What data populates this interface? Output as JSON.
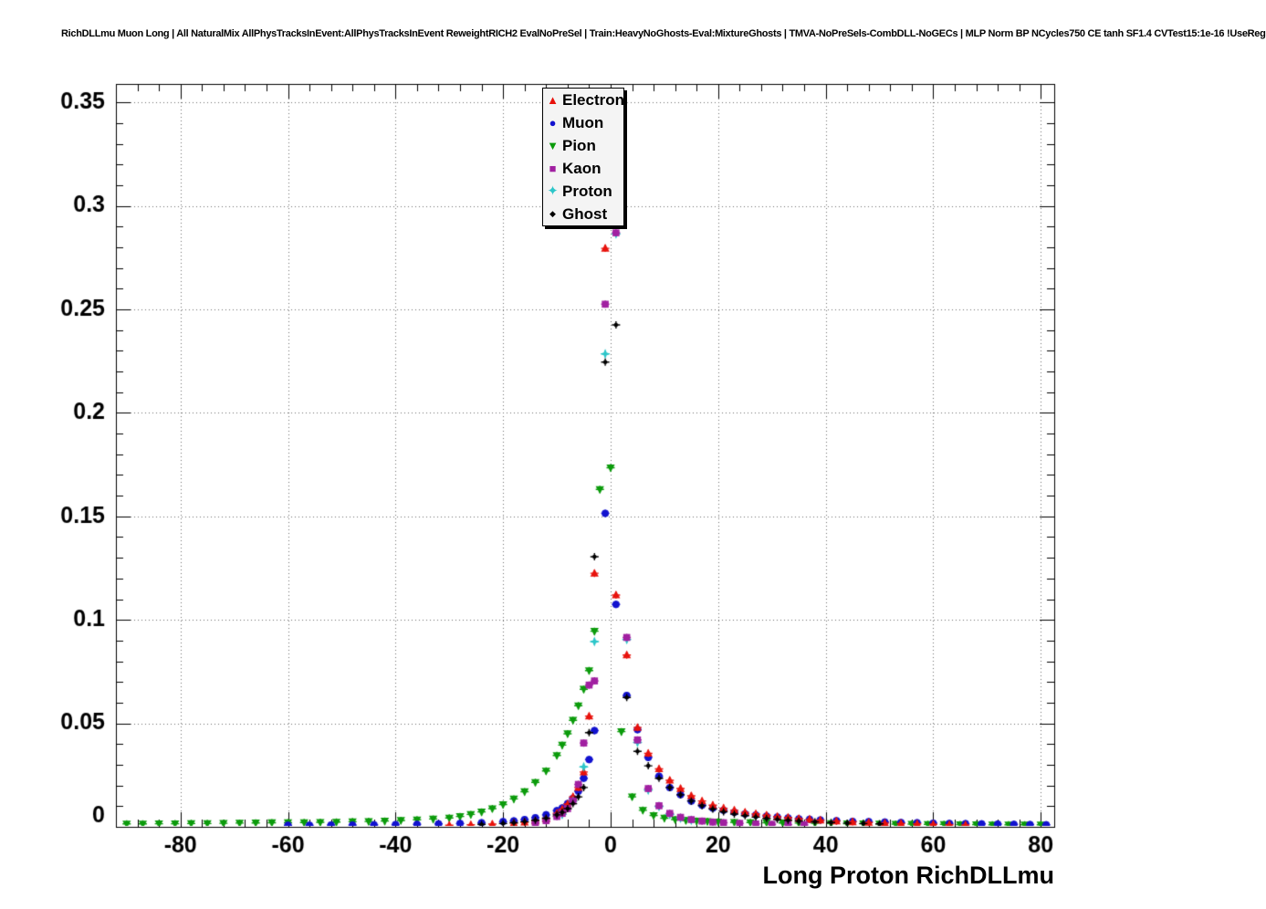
{
  "title": "RichDLLmu Muon Long | All NaturalMix AllPhysTracksInEvent:AllPhysTracksInEvent ReweightRICH2 EvalNoPreSel | Train:HeavyNoGhosts-Eval:MixtureGhosts | TMVA-NoPreSels-CombDLL-NoGECs | MLP Norm BP NCycles750 CE tanh SF1.4 CVTest15:1e-16 !UseReg",
  "chart_data": {
    "type": "scatter",
    "title": "RichDLLmu Muon Long",
    "xlabel": "Long Proton RichDLLmu",
    "ylabel": "",
    "xlim": [
      -92,
      82.5
    ],
    "ylim": [
      0,
      0.3589
    ],
    "xticks": [
      -80,
      -60,
      -40,
      -20,
      0,
      20,
      40,
      60,
      80
    ],
    "yticks": [
      0,
      0.05,
      0.1,
      0.15,
      0.2,
      0.25,
      0.3,
      0.35
    ],
    "ytick_labels": [
      "0",
      "0.05",
      "0.1",
      "0.15",
      "0.2",
      "0.25",
      "0.3",
      "0.35"
    ],
    "grid": true,
    "grid_style": "dotted",
    "legend_position": "top-center",
    "draw_order": [
      2,
      1,
      0,
      4,
      3,
      5
    ],
    "series": [
      {
        "name": "Electron",
        "color": "#e8120c",
        "marker": "triangle-up",
        "points": [
          [
            -30,
            0.0008
          ],
          [
            -26,
            0.001
          ],
          [
            -22,
            0.0013
          ],
          [
            -18,
            0.0018
          ],
          [
            -16,
            0.0022
          ],
          [
            -14,
            0.0028
          ],
          [
            -12,
            0.0038
          ],
          [
            -10,
            0.0065
          ],
          [
            -9,
            0.0085
          ],
          [
            -8,
            0.011
          ],
          [
            -7,
            0.0145
          ],
          [
            -6,
            0.019
          ],
          [
            -5,
            0.0265
          ],
          [
            -4,
            0.0535
          ],
          [
            -3,
            0.1225
          ],
          [
            -1,
            0.2795
          ],
          [
            1,
            0.112
          ],
          [
            3,
            0.083
          ],
          [
            5,
            0.048
          ],
          [
            7,
            0.0355
          ],
          [
            9,
            0.028
          ],
          [
            11,
            0.0225
          ],
          [
            13,
            0.0185
          ],
          [
            15,
            0.015
          ],
          [
            17,
            0.0125
          ],
          [
            19,
            0.0105
          ],
          [
            21,
            0.009
          ],
          [
            23,
            0.008
          ],
          [
            25,
            0.007
          ],
          [
            27,
            0.0063
          ],
          [
            29,
            0.0056
          ],
          [
            31,
            0.005
          ],
          [
            33,
            0.0045
          ],
          [
            35,
            0.004
          ],
          [
            37,
            0.0036
          ],
          [
            39,
            0.0032
          ],
          [
            42,
            0.0028
          ],
          [
            45,
            0.0024
          ],
          [
            48,
            0.0021
          ],
          [
            51,
            0.0018
          ],
          [
            54,
            0.0016
          ],
          [
            57,
            0.0014
          ],
          [
            60,
            0.0012
          ],
          [
            63,
            0.001
          ],
          [
            66,
            0.0009
          ]
        ]
      },
      {
        "name": "Muon",
        "color": "#1212cf",
        "marker": "circle",
        "points": [
          [
            -60,
            0.0008
          ],
          [
            -56,
            0.0008
          ],
          [
            -52,
            0.0009
          ],
          [
            -48,
            0.0009
          ],
          [
            -44,
            0.001
          ],
          [
            -40,
            0.0011
          ],
          [
            -36,
            0.0012
          ],
          [
            -32,
            0.0014
          ],
          [
            -28,
            0.0016
          ],
          [
            -24,
            0.002
          ],
          [
            -20,
            0.0025
          ],
          [
            -18,
            0.0029
          ],
          [
            -16,
            0.0035
          ],
          [
            -14,
            0.0044
          ],
          [
            -12,
            0.0058
          ],
          [
            -10,
            0.0078
          ],
          [
            -9,
            0.0092
          ],
          [
            -8,
            0.0112
          ],
          [
            -7,
            0.0138
          ],
          [
            -6,
            0.0172
          ],
          [
            -5,
            0.0235
          ],
          [
            -4,
            0.0325
          ],
          [
            -3,
            0.0465
          ],
          [
            -1,
            0.1515
          ],
          [
            1,
            0.1075
          ],
          [
            3,
            0.0635
          ],
          [
            5,
            0.047
          ],
          [
            7,
            0.0335
          ],
          [
            9,
            0.0245
          ],
          [
            11,
            0.019
          ],
          [
            13,
            0.0155
          ],
          [
            15,
            0.0125
          ],
          [
            17,
            0.0105
          ],
          [
            19,
            0.009
          ],
          [
            21,
            0.008
          ],
          [
            23,
            0.007
          ],
          [
            25,
            0.0063
          ],
          [
            27,
            0.0057
          ],
          [
            29,
            0.0052
          ],
          [
            31,
            0.0047
          ],
          [
            33,
            0.0043
          ],
          [
            35,
            0.0039
          ],
          [
            37,
            0.0036
          ],
          [
            39,
            0.0033
          ],
          [
            42,
            0.003
          ],
          [
            45,
            0.0027
          ],
          [
            48,
            0.0025
          ],
          [
            51,
            0.0023
          ],
          [
            54,
            0.0021
          ],
          [
            57,
            0.002
          ],
          [
            60,
            0.0018
          ],
          [
            63,
            0.0017
          ],
          [
            66,
            0.0015
          ],
          [
            69,
            0.0014
          ],
          [
            72,
            0.0013
          ],
          [
            75,
            0.0012
          ],
          [
            78,
            0.0011
          ],
          [
            81,
            0.001
          ]
        ]
      },
      {
        "name": "Pion",
        "color": "#0b9b0b",
        "marker": "triangle-down",
        "points": [
          [
            -90,
            0.0014
          ],
          [
            -87,
            0.0014
          ],
          [
            -84,
            0.0015
          ],
          [
            -81,
            0.0015
          ],
          [
            -78,
            0.0016
          ],
          [
            -75,
            0.0016
          ],
          [
            -72,
            0.0017
          ],
          [
            -69,
            0.0018
          ],
          [
            -66,
            0.0019
          ],
          [
            -63,
            0.002
          ],
          [
            -60,
            0.002
          ],
          [
            -57,
            0.0021
          ],
          [
            -54,
            0.0022
          ],
          [
            -51,
            0.0023
          ],
          [
            -48,
            0.0025
          ],
          [
            -45,
            0.0026
          ],
          [
            -42,
            0.0028
          ],
          [
            -39,
            0.0031
          ],
          [
            -36,
            0.0034
          ],
          [
            -33,
            0.0038
          ],
          [
            -30,
            0.0043
          ],
          [
            -28,
            0.005
          ],
          [
            -26,
            0.006
          ],
          [
            -24,
            0.0072
          ],
          [
            -22,
            0.0088
          ],
          [
            -20,
            0.0108
          ],
          [
            -18,
            0.0135
          ],
          [
            -16,
            0.017
          ],
          [
            -14,
            0.0215
          ],
          [
            -12,
            0.027
          ],
          [
            -10,
            0.0345
          ],
          [
            -9,
            0.0395
          ],
          [
            -8,
            0.045
          ],
          [
            -7,
            0.0515
          ],
          [
            -6,
            0.0585
          ],
          [
            -5,
            0.0665
          ],
          [
            -4,
            0.0755
          ],
          [
            -3,
            0.0945
          ],
          [
            -2,
            0.163
          ],
          [
            0,
            0.1735
          ],
          [
            2,
            0.046
          ],
          [
            4,
            0.0145
          ],
          [
            6,
            0.008
          ],
          [
            8,
            0.0055
          ],
          [
            10,
            0.0042
          ],
          [
            12,
            0.0035
          ],
          [
            14,
            0.0031
          ],
          [
            16,
            0.0028
          ],
          [
            18,
            0.0026
          ],
          [
            20,
            0.0024
          ],
          [
            23,
            0.0022
          ],
          [
            26,
            0.0021
          ],
          [
            29,
            0.002
          ],
          [
            32,
            0.0019
          ],
          [
            35,
            0.0018
          ],
          [
            38,
            0.0017
          ],
          [
            41,
            0.0016
          ],
          [
            44,
            0.0015
          ],
          [
            47,
            0.0015
          ],
          [
            50,
            0.0014
          ],
          [
            53,
            0.0013
          ],
          [
            56,
            0.0013
          ],
          [
            59,
            0.0012
          ],
          [
            62,
            0.0012
          ],
          [
            65,
            0.0011
          ],
          [
            68,
            0.0011
          ],
          [
            71,
            0.001
          ],
          [
            74,
            0.001
          ],
          [
            77,
            0.001
          ],
          [
            80,
            0.001
          ]
        ]
      },
      {
        "name": "Kaon",
        "color": "#a120a1",
        "marker": "square",
        "points": [
          [
            -14,
            0.002
          ],
          [
            -12,
            0.003
          ],
          [
            -10,
            0.005
          ],
          [
            -9,
            0.0065
          ],
          [
            -8,
            0.0088
          ],
          [
            -7,
            0.0125
          ],
          [
            -6,
            0.0205
          ],
          [
            -5,
            0.0405
          ],
          [
            -4,
            0.0685
          ],
          [
            -3,
            0.0705
          ],
          [
            -1,
            0.2525
          ],
          [
            1,
            0.287
          ],
          [
            3,
            0.0915
          ],
          [
            5,
            0.042
          ],
          [
            7,
            0.0185
          ],
          [
            9,
            0.0102
          ],
          [
            11,
            0.0065
          ],
          [
            13,
            0.0046
          ],
          [
            15,
            0.0035
          ],
          [
            17,
            0.0028
          ],
          [
            19,
            0.0023
          ],
          [
            21,
            0.002
          ],
          [
            24,
            0.0017
          ],
          [
            27,
            0.0014
          ],
          [
            30,
            0.0012
          ],
          [
            33,
            0.0011
          ],
          [
            36,
            0.001
          ]
        ]
      },
      {
        "name": "Proton",
        "color": "#2cc6c9",
        "marker": "star4",
        "points": [
          [
            -9,
            0.006
          ],
          [
            -7,
            0.0125
          ],
          [
            -5,
            0.029
          ],
          [
            -3,
            0.0895
          ],
          [
            -1,
            0.2285
          ],
          [
            1,
            0.2865
          ],
          [
            3,
            0.0905
          ],
          [
            5,
            0.0408
          ],
          [
            7,
            0.0178
          ],
          [
            9,
            0.0098
          ],
          [
            11,
            0.006
          ],
          [
            13,
            0.0042
          ],
          [
            15,
            0.0032
          ]
        ]
      },
      {
        "name": "Ghost",
        "color": "#000000",
        "marker": "dot",
        "points": [
          [
            -24,
            0.0012
          ],
          [
            -20,
            0.0016
          ],
          [
            -18,
            0.002
          ],
          [
            -16,
            0.0025
          ],
          [
            -14,
            0.0032
          ],
          [
            -12,
            0.0042
          ],
          [
            -10,
            0.0058
          ],
          [
            -9,
            0.007
          ],
          [
            -8,
            0.0088
          ],
          [
            -7,
            0.0112
          ],
          [
            -6,
            0.0145
          ],
          [
            -5,
            0.019
          ],
          [
            -4,
            0.0455
          ],
          [
            -3,
            0.1305
          ],
          [
            -1,
            0.2245
          ],
          [
            1,
            0.2425
          ],
          [
            3,
            0.0625
          ],
          [
            5,
            0.0365
          ],
          [
            7,
            0.0295
          ],
          [
            9,
            0.0235
          ],
          [
            11,
            0.019
          ],
          [
            13,
            0.0155
          ],
          [
            15,
            0.0125
          ],
          [
            17,
            0.0102
          ],
          [
            19,
            0.0086
          ],
          [
            21,
            0.0073
          ],
          [
            23,
            0.0062
          ],
          [
            25,
            0.0054
          ],
          [
            27,
            0.0047
          ],
          [
            29,
            0.0041
          ],
          [
            31,
            0.0036
          ],
          [
            33,
            0.0032
          ],
          [
            35,
            0.0028
          ],
          [
            38,
            0.0024
          ],
          [
            41,
            0.0021
          ],
          [
            44,
            0.0018
          ],
          [
            47,
            0.0016
          ],
          [
            50,
            0.0014
          ]
        ]
      }
    ]
  }
}
